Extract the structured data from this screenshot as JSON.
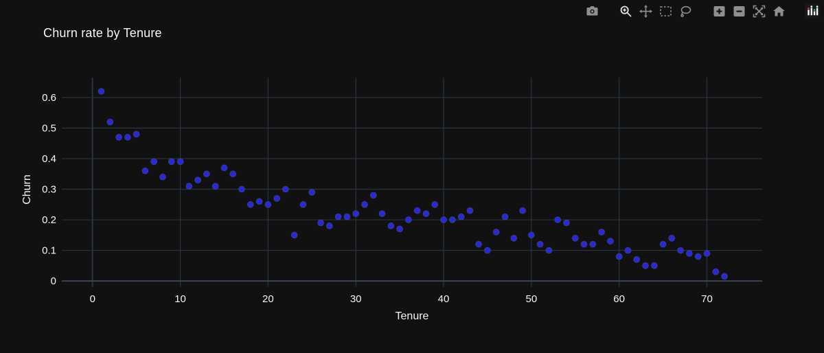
{
  "header": {
    "title": "Churn rate by Tenure"
  },
  "modebar": {
    "icons": [
      "camera-icon",
      "zoom-icon",
      "pan-icon",
      "box-select-icon",
      "lasso-select-icon",
      "zoom-in-icon",
      "zoom-out-icon",
      "autoscale-icon",
      "reset-axes-home-icon",
      "plotly-logo-icon"
    ],
    "active_icon": "zoom-icon",
    "icon_color": "#8f8f8f",
    "active_icon_color": "#e3e3e3"
  },
  "chart_data": {
    "type": "scatter",
    "title": "Churn rate by Tenure",
    "xlabel": "Tenure",
    "ylabel": "Churn",
    "x": [
      1,
      2,
      3,
      4,
      5,
      6,
      7,
      8,
      9,
      10,
      11,
      12,
      13,
      14,
      15,
      16,
      17,
      18,
      19,
      20,
      21,
      22,
      23,
      24,
      25,
      26,
      27,
      28,
      29,
      30,
      31,
      32,
      33,
      34,
      35,
      36,
      37,
      38,
      39,
      40,
      41,
      42,
      43,
      44,
      45,
      46,
      47,
      48,
      49,
      50,
      51,
      52,
      53,
      54,
      55,
      56,
      57,
      58,
      59,
      60,
      61,
      62,
      63,
      64,
      65,
      66,
      67,
      68,
      69,
      70,
      71,
      72
    ],
    "y": [
      0.62,
      0.52,
      0.47,
      0.47,
      0.48,
      0.36,
      0.39,
      0.34,
      0.39,
      0.39,
      0.31,
      0.33,
      0.35,
      0.31,
      0.37,
      0.35,
      0.3,
      0.25,
      0.26,
      0.25,
      0.27,
      0.3,
      0.15,
      0.25,
      0.29,
      0.19,
      0.18,
      0.21,
      0.21,
      0.22,
      0.25,
      0.28,
      0.22,
      0.18,
      0.17,
      0.2,
      0.23,
      0.22,
      0.25,
      0.2,
      0.2,
      0.21,
      0.23,
      0.12,
      0.1,
      0.16,
      0.21,
      0.14,
      0.23,
      0.15,
      0.12,
      0.1,
      0.2,
      0.19,
      0.14,
      0.12,
      0.12,
      0.16,
      0.13,
      0.08,
      0.1,
      0.07,
      0.05,
      0.05,
      0.12,
      0.14,
      0.1,
      0.09,
      0.08,
      0.09,
      0.03,
      0.015
    ],
    "xlim": [
      -3.5,
      76.3
    ],
    "ylim": [
      -0.02,
      0.665
    ],
    "xticks": [
      0,
      10,
      20,
      30,
      40,
      50,
      60,
      70
    ],
    "xticklabels": [
      "0",
      "10",
      "20",
      "30",
      "40",
      "50",
      "60",
      "70"
    ],
    "yticks": [
      0,
      0.1,
      0.2,
      0.3,
      0.4,
      0.5,
      0.6
    ],
    "yticklabels": [
      "0",
      "0.1",
      "0.2",
      "0.3",
      "0.4",
      "0.5",
      "0.6"
    ],
    "grid": true,
    "legend": "none",
    "marker_color": "#2727e0",
    "grid_color": "#283442",
    "zeroline_color": "#3a4656",
    "bg_color": "#111111",
    "text_color": "#f2f5fa"
  }
}
